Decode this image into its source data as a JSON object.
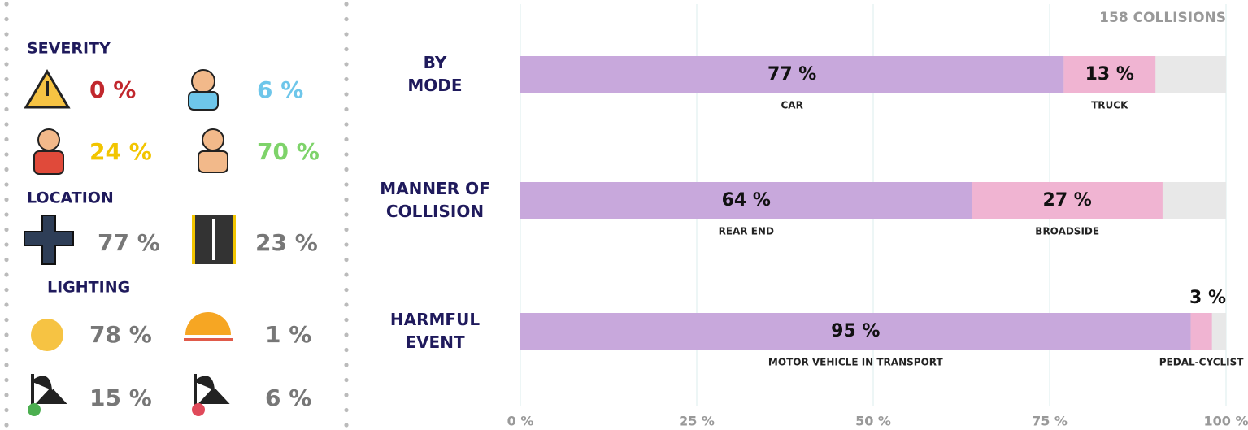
{
  "panel": {
    "sections": [
      {
        "title": "SEVERITY",
        "items": [
          {
            "text": "0 %",
            "color": "#c1272d"
          },
          {
            "text": "6 %",
            "color": "#6ec6ea"
          },
          {
            "text": "24 %",
            "color": "#f2c500"
          },
          {
            "text": "70 %",
            "color": "#7ed36a"
          }
        ]
      },
      {
        "title": "LOCATION",
        "items": [
          {
            "text": "77 %",
            "color": "#777777"
          },
          {
            "text": "23 %",
            "color": "#777777"
          }
        ]
      },
      {
        "title": "LIGHTING",
        "items": [
          {
            "text": "78 %",
            "color": "#777777"
          },
          {
            "text": "1 %",
            "color": "#777777"
          },
          {
            "text": "15 %",
            "color": "#777777"
          },
          {
            "text": "6 %",
            "color": "#777777"
          }
        ]
      }
    ]
  },
  "chart_data": {
    "type": "stacked_bar_h",
    "annotation": "158 COLLISIONS",
    "categories": [
      "BY MODE",
      "MANNER OF COLLISION",
      "HARMFUL EVENT"
    ],
    "series": [
      {
        "color": "#c8a8dc",
        "values": [
          77,
          64,
          95
        ],
        "value_labels": [
          "77 %",
          "64 %",
          "95 %"
        ],
        "segment_labels": [
          "CAR",
          "REAR END",
          "MOTOR VEHICLE IN TRANSPORT"
        ]
      },
      {
        "color": "#f0b4d2",
        "values": [
          13,
          27,
          3
        ],
        "value_labels": [
          "13 %",
          "27 %",
          "3 %"
        ],
        "segment_labels": [
          "TRUCK",
          "BROADSIDE",
          "PEDAL-CYCLIST"
        ]
      }
    ],
    "track_color": "#e8e8e8",
    "xlim": [
      0,
      100
    ],
    "xticks": [
      {
        "value": 0,
        "label": "0 %"
      },
      {
        "value": 25,
        "label": "25 %"
      },
      {
        "value": 50,
        "label": "50 %"
      },
      {
        "value": 75,
        "label": "75 %"
      },
      {
        "value": 100,
        "label": "100 %"
      }
    ],
    "grid": true
  }
}
